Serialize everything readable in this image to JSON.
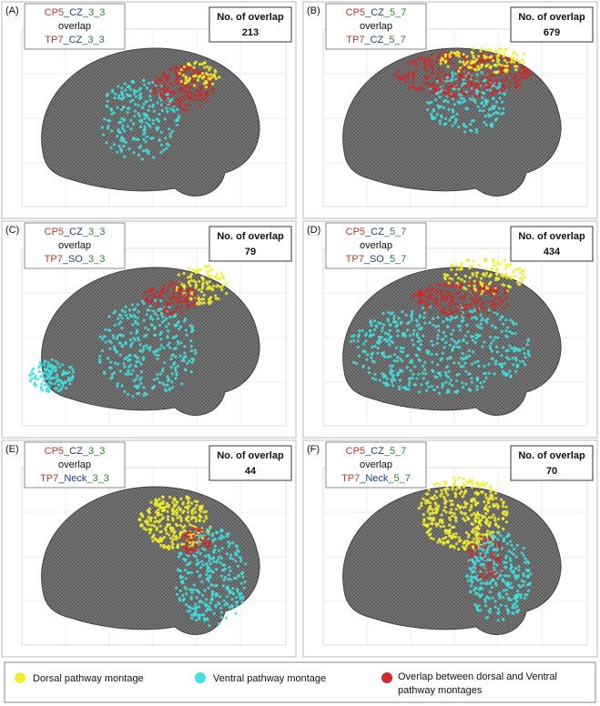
{
  "panels": [
    {
      "label": "(A)",
      "line1": [
        "CP5",
        "_CZ",
        "_3_3"
      ],
      "middle": "overlap",
      "line3": [
        "TP7",
        "_CZ",
        "_3_3"
      ],
      "box_title": "No. of overlap",
      "count": 213
    },
    {
      "label": "(B)",
      "line1": [
        "CP5",
        "_CZ",
        "_5_7"
      ],
      "middle": "overlap",
      "line3": [
        "TP7",
        "_CZ",
        "_5_7"
      ],
      "box_title": "No. of overlap",
      "count": 679
    },
    {
      "label": "(C)",
      "line1": [
        "CP5",
        "_CZ",
        "_3_3"
      ],
      "middle": "overlap",
      "line3": [
        "TP7",
        "_SO",
        "_3_3"
      ],
      "box_title": "No. of overlap",
      "count": 79
    },
    {
      "label": "(D)",
      "line1": [
        "CP5",
        "_CZ",
        "_5_7"
      ],
      "middle": "overlap",
      "line3": [
        "TP7",
        "_SO",
        "_5_7"
      ],
      "box_title": "No. of overlap",
      "count": 434
    },
    {
      "label": "(E)",
      "line1": [
        "CP5",
        "_CZ",
        "_3_3"
      ],
      "middle": "overlap",
      "line3": [
        "TP7",
        "_Neck",
        "_3_3"
      ],
      "box_title": "No. of overlap",
      "count": 44
    },
    {
      "label": "(F)",
      "line1": [
        "CP5",
        "_CZ",
        "_5_7"
      ],
      "middle": "overlap",
      "line3": [
        "TP7",
        "_Neck",
        "_5_7"
      ],
      "box_title": "No. of overlap",
      "count": 70
    }
  ],
  "legend": {
    "dorsal": "Dorsal pathway montage",
    "ventral": "Ventral pathway montage",
    "overlap": [
      "Overlap between dorsal and Ventral",
      "pathway montages"
    ]
  }
}
